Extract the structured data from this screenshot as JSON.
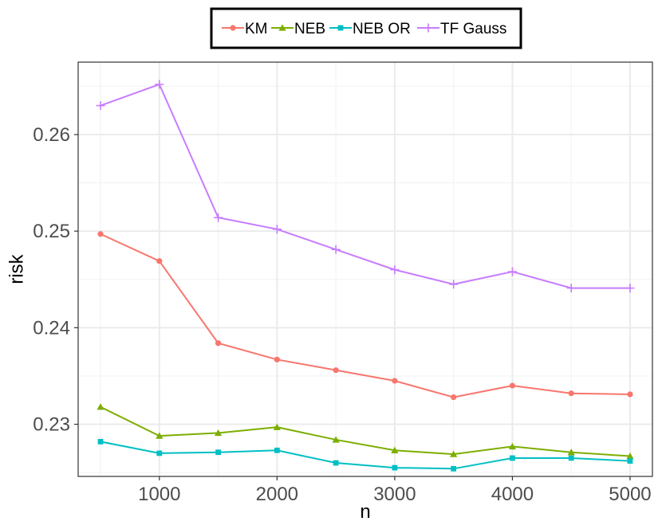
{
  "chart_data": {
    "type": "line",
    "title": "",
    "xlabel": "n",
    "ylabel": "risk",
    "x": [
      500,
      1000,
      1500,
      2000,
      2500,
      3000,
      3500,
      4000,
      4500,
      5000
    ],
    "xlim": [
      310,
      5190
    ],
    "ylim": [
      0.2246,
      0.2675
    ],
    "x_ticks": [
      1000,
      2000,
      3000,
      4000,
      5000
    ],
    "x_tick_labels": [
      "1000",
      "2000",
      "3000",
      "4000",
      "5000"
    ],
    "y_ticks": [
      0.23,
      0.24,
      0.25,
      0.26
    ],
    "y_tick_labels": [
      "0.23",
      "0.24",
      "0.25",
      "0.26"
    ],
    "grid": true,
    "legend_position": "top",
    "series": [
      {
        "name": "KM",
        "color": "#F8766D",
        "marker": "circle",
        "values": [
          0.2497,
          0.2469,
          0.2384,
          0.2367,
          0.2356,
          0.2345,
          0.2328,
          0.234,
          0.2332,
          0.2331
        ]
      },
      {
        "name": "NEB",
        "color": "#7CAE00",
        "marker": "triangle",
        "values": [
          0.2318,
          0.2288,
          0.2291,
          0.2297,
          0.2284,
          0.2273,
          0.2269,
          0.2277,
          0.2271,
          0.2267
        ]
      },
      {
        "name": "NEB OR",
        "color": "#00BFC4",
        "marker": "square",
        "values": [
          0.2282,
          0.227,
          0.2271,
          0.2273,
          0.226,
          0.2255,
          0.2254,
          0.2265,
          0.2265,
          0.2262
        ]
      },
      {
        "name": "TF Gauss",
        "color": "#C77CFF",
        "marker": "plus",
        "values": [
          0.263,
          0.2652,
          0.2514,
          0.2502,
          0.2481,
          0.246,
          0.2445,
          0.2458,
          0.2441,
          0.2441
        ]
      }
    ]
  }
}
